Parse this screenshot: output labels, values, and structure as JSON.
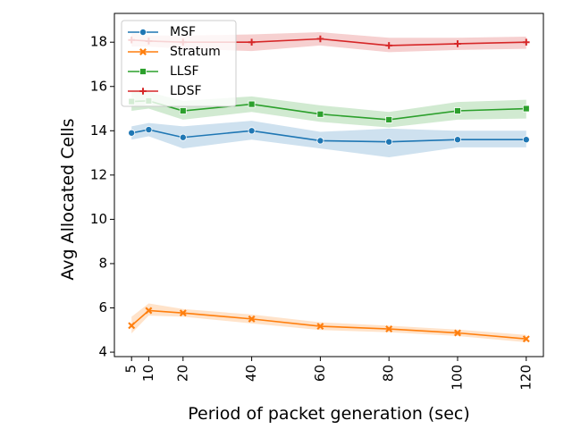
{
  "chart_data": {
    "type": "line",
    "xlabel": "Period of packet generation (sec)",
    "ylabel": "Avg Allocated Cells",
    "x": [
      5,
      10,
      20,
      40,
      60,
      80,
      100,
      120
    ],
    "xticks": [
      5,
      10,
      20,
      40,
      60,
      80,
      100,
      120
    ],
    "yticks": [
      4,
      6,
      8,
      10,
      12,
      14,
      16,
      18
    ],
    "xlim": [
      0,
      125
    ],
    "ylim": [
      3.8,
      19.3
    ],
    "grid": false,
    "legend_position": "top-left",
    "series": [
      {
        "name": "MSF",
        "color": "#1f77b4",
        "marker": "circle",
        "values": [
          13.9,
          14.05,
          13.7,
          14.0,
          13.55,
          13.5,
          13.6,
          13.6
        ],
        "lower": [
          13.6,
          13.75,
          13.2,
          13.6,
          13.2,
          12.8,
          13.25,
          13.25
        ],
        "upper": [
          14.2,
          14.35,
          14.2,
          14.45,
          13.95,
          14.1,
          14.0,
          14.0
        ]
      },
      {
        "name": "Stratum",
        "color": "#ff7f0e",
        "marker": "x",
        "values": [
          5.2,
          5.88,
          5.77,
          5.5,
          5.17,
          5.05,
          4.87,
          4.6
        ],
        "lower": [
          4.85,
          5.65,
          5.6,
          5.3,
          5.0,
          4.9,
          4.73,
          4.45
        ],
        "upper": [
          5.6,
          6.2,
          5.95,
          5.7,
          5.35,
          5.2,
          5.02,
          4.78
        ]
      },
      {
        "name": "LLSF",
        "color": "#2ca02c",
        "marker": "square",
        "values": [
          15.32,
          15.35,
          14.9,
          15.2,
          14.75,
          14.5,
          14.9,
          15.0
        ],
        "lower": [
          14.9,
          15.0,
          14.5,
          14.85,
          14.4,
          14.15,
          14.5,
          14.55
        ],
        "upper": [
          15.8,
          15.75,
          15.35,
          15.55,
          15.15,
          14.85,
          15.3,
          15.4
        ]
      },
      {
        "name": "LDSF",
        "color": "#d62728",
        "marker": "plus",
        "values": [
          18.1,
          18.05,
          18.0,
          18.0,
          18.15,
          17.85,
          17.93,
          18.0
        ],
        "lower": [
          17.8,
          17.8,
          17.7,
          17.6,
          17.85,
          17.55,
          17.65,
          17.7
        ],
        "upper": [
          18.4,
          18.3,
          18.3,
          18.35,
          18.45,
          18.2,
          18.2,
          18.25
        ]
      }
    ]
  }
}
